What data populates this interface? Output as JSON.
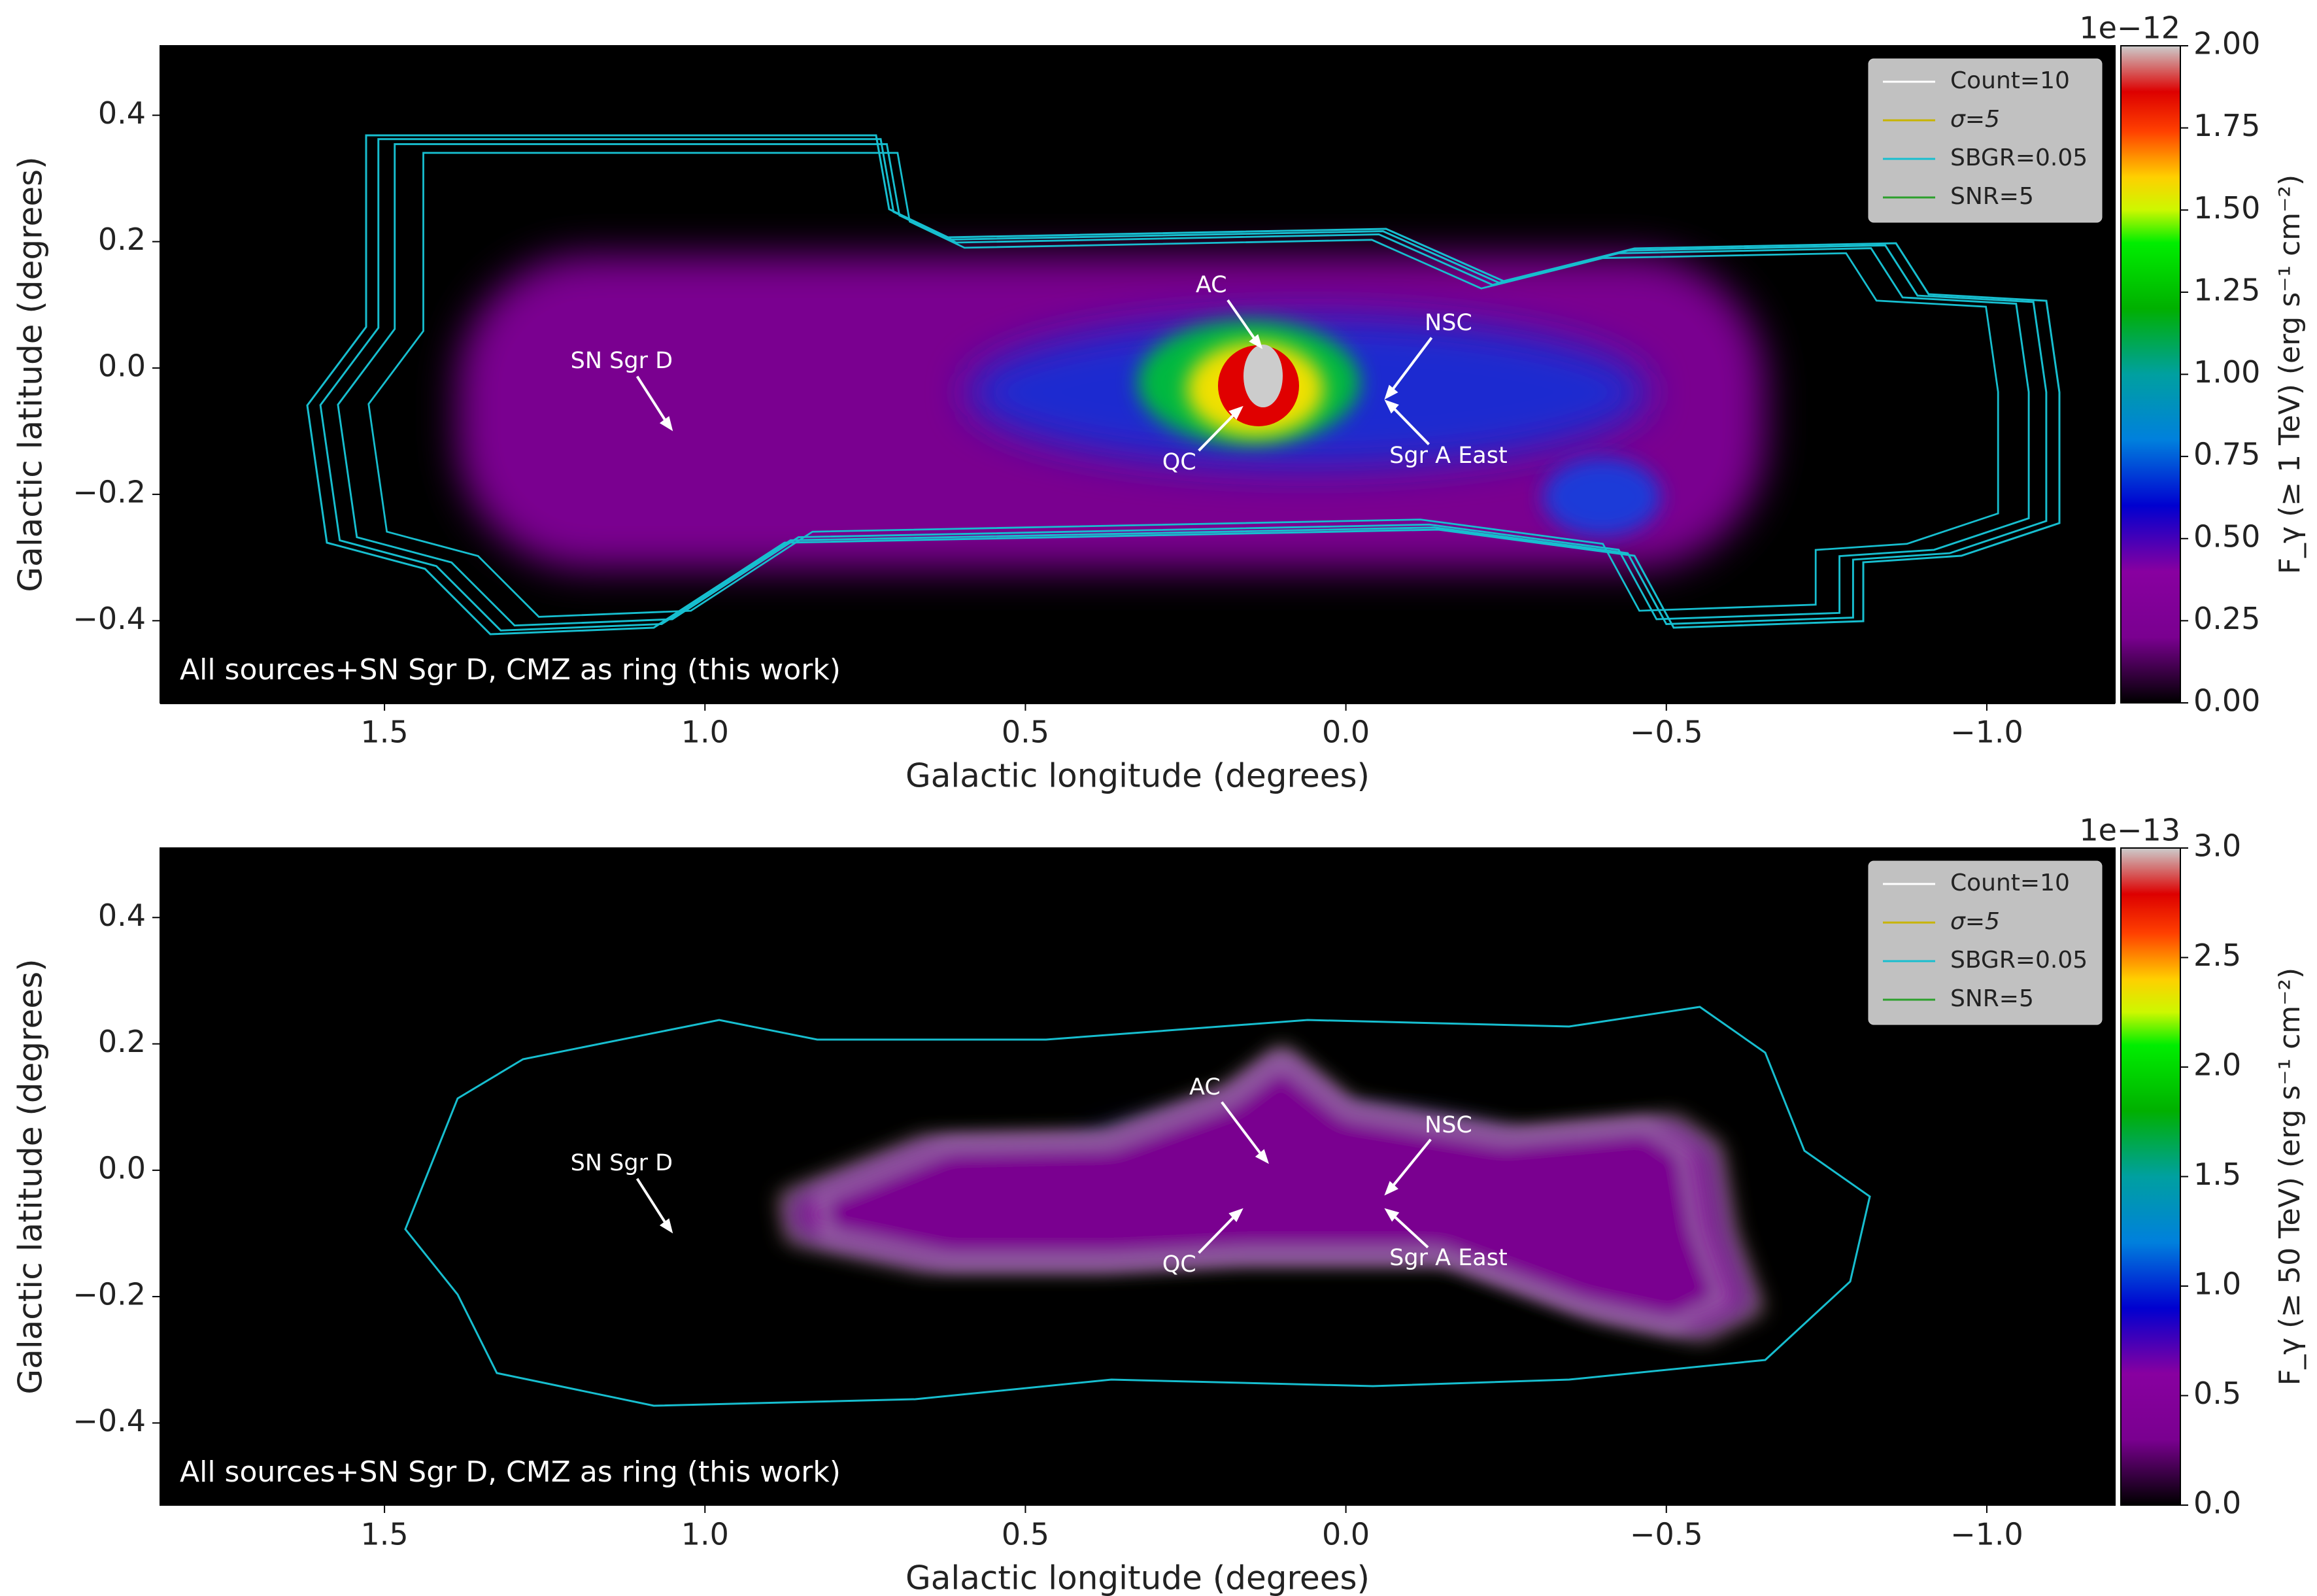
{
  "chart_data": [
    {
      "type": "heatmap",
      "xlabel": "Galactic longitude (degrees)",
      "ylabel": "Galactic latitude (degrees)",
      "xlim": [
        1.85,
        -1.2
      ],
      "ylim": [
        -0.53,
        0.51
      ],
      "xticks": [
        {
          "value": 1.5,
          "label": "1.5"
        },
        {
          "value": 1,
          "label": "1.0"
        },
        {
          "value": 0.5,
          "label": "0.5"
        },
        {
          "value": 0,
          "label": "0.0"
        },
        {
          "value": -0.5,
          "label": "−0.5"
        },
        {
          "value": -1,
          "label": "−1.0"
        }
      ],
      "yticks": [
        {
          "value": 0.4,
          "label": "0.4"
        },
        {
          "value": 0.2,
          "label": "0.2"
        },
        {
          "value": 0,
          "label": "0.0"
        },
        {
          "value": -0.2,
          "label": "−0.2"
        },
        {
          "value": -0.4,
          "label": "−0.4"
        }
      ],
      "panel_label": "All sources+SN Sgr D, CMZ as ring (this work)",
      "legend": [
        {
          "label": "Count=10",
          "color": "#ffffff"
        },
        {
          "label": "σ=5",
          "color": "#c8b400"
        },
        {
          "label": "SBGR=0.05",
          "color": "#17becf"
        },
        {
          "label": "SNR=5",
          "color": "#2ca02c"
        }
      ],
      "legend_position": "upper right",
      "annotations": [
        {
          "text": "AC",
          "x": 0.21,
          "y": 0.13,
          "xy": [
            0.13,
            0.03
          ]
        },
        {
          "text": "NSC",
          "x": -0.16,
          "y": 0.07,
          "xy": [
            -0.06,
            -0.05
          ]
        },
        {
          "text": "QC",
          "x": 0.26,
          "y": -0.15,
          "xy": [
            0.16,
            -0.06
          ]
        },
        {
          "text": "Sgr A East",
          "x": -0.16,
          "y": -0.14,
          "xy": [
            -0.06,
            -0.05
          ]
        },
        {
          "text": "SN Sgr D",
          "x": 1.13,
          "y": 0.01,
          "xy": [
            1.05,
            -0.1
          ]
        }
      ],
      "colorbar": {
        "label": "F_γ (≥ 1 TeV) (erg s⁻¹ cm⁻²)",
        "offset_label": "1e−12",
        "colormap": "nipy_spectral",
        "ylim": [
          0,
          2
        ],
        "yticks": [
          {
            "value": 0,
            "label": "0.00"
          },
          {
            "value": 0.25,
            "label": "0.25"
          },
          {
            "value": 0.5,
            "label": "0.50"
          },
          {
            "value": 0.75,
            "label": "0.75"
          },
          {
            "value": 1,
            "label": "1.00"
          },
          {
            "value": 1.25,
            "label": "1.25"
          },
          {
            "value": 1.5,
            "label": "1.50"
          },
          {
            "value": 1.75,
            "label": "1.75"
          },
          {
            "value": 2,
            "label": "2.00"
          }
        ]
      }
    },
    {
      "type": "heatmap",
      "xlabel": "Galactic longitude (degrees)",
      "ylabel": "Galactic latitude (degrees)",
      "xlim": [
        1.85,
        -1.2
      ],
      "ylim": [
        -0.53,
        0.51
      ],
      "xticks": [
        {
          "value": 1.5,
          "label": "1.5"
        },
        {
          "value": 1,
          "label": "1.0"
        },
        {
          "value": 0.5,
          "label": "0.5"
        },
        {
          "value": 0,
          "label": "0.0"
        },
        {
          "value": -0.5,
          "label": "−0.5"
        },
        {
          "value": -1,
          "label": "−1.0"
        }
      ],
      "yticks": [
        {
          "value": 0.4,
          "label": "0.4"
        },
        {
          "value": 0.2,
          "label": "0.2"
        },
        {
          "value": 0,
          "label": "0.0"
        },
        {
          "value": -0.2,
          "label": "−0.2"
        },
        {
          "value": -0.4,
          "label": "−0.4"
        }
      ],
      "panel_label": "All sources+SN Sgr D, CMZ as ring (this work)",
      "legend": [
        {
          "label": "Count=10",
          "color": "#ffffff"
        },
        {
          "label": "σ=5",
          "color": "#c8b400"
        },
        {
          "label": "SBGR=0.05",
          "color": "#17becf"
        },
        {
          "label": "SNR=5",
          "color": "#2ca02c"
        }
      ],
      "legend_position": "upper right",
      "annotations": [
        {
          "text": "AC",
          "x": 0.22,
          "y": 0.13,
          "xy": [
            0.12,
            0.01
          ]
        },
        {
          "text": "NSC",
          "x": -0.16,
          "y": 0.07,
          "xy": [
            -0.06,
            -0.04
          ]
        },
        {
          "text": "QC",
          "x": 0.26,
          "y": -0.15,
          "xy": [
            0.16,
            -0.06
          ]
        },
        {
          "text": "Sgr A East",
          "x": -0.16,
          "y": -0.14,
          "xy": [
            -0.06,
            -0.06
          ]
        },
        {
          "text": "SN Sgr D",
          "x": 1.13,
          "y": 0.01,
          "xy": [
            1.05,
            -0.1
          ]
        }
      ],
      "colorbar": {
        "label": "F_γ (≥ 50 TeV) (erg s⁻¹ cm⁻²)",
        "offset_label": "1e−13",
        "colormap": "nipy_spectral",
        "ylim": [
          0,
          3
        ],
        "yticks": [
          {
            "value": 0,
            "label": "0.0"
          },
          {
            "value": 0.5,
            "label": "0.5"
          },
          {
            "value": 1,
            "label": "1.0"
          },
          {
            "value": 1.5,
            "label": "1.5"
          },
          {
            "value": 2,
            "label": "2.0"
          },
          {
            "value": 2.5,
            "label": "2.5"
          },
          {
            "value": 3,
            "label": "3.0"
          }
        ]
      }
    }
  ]
}
